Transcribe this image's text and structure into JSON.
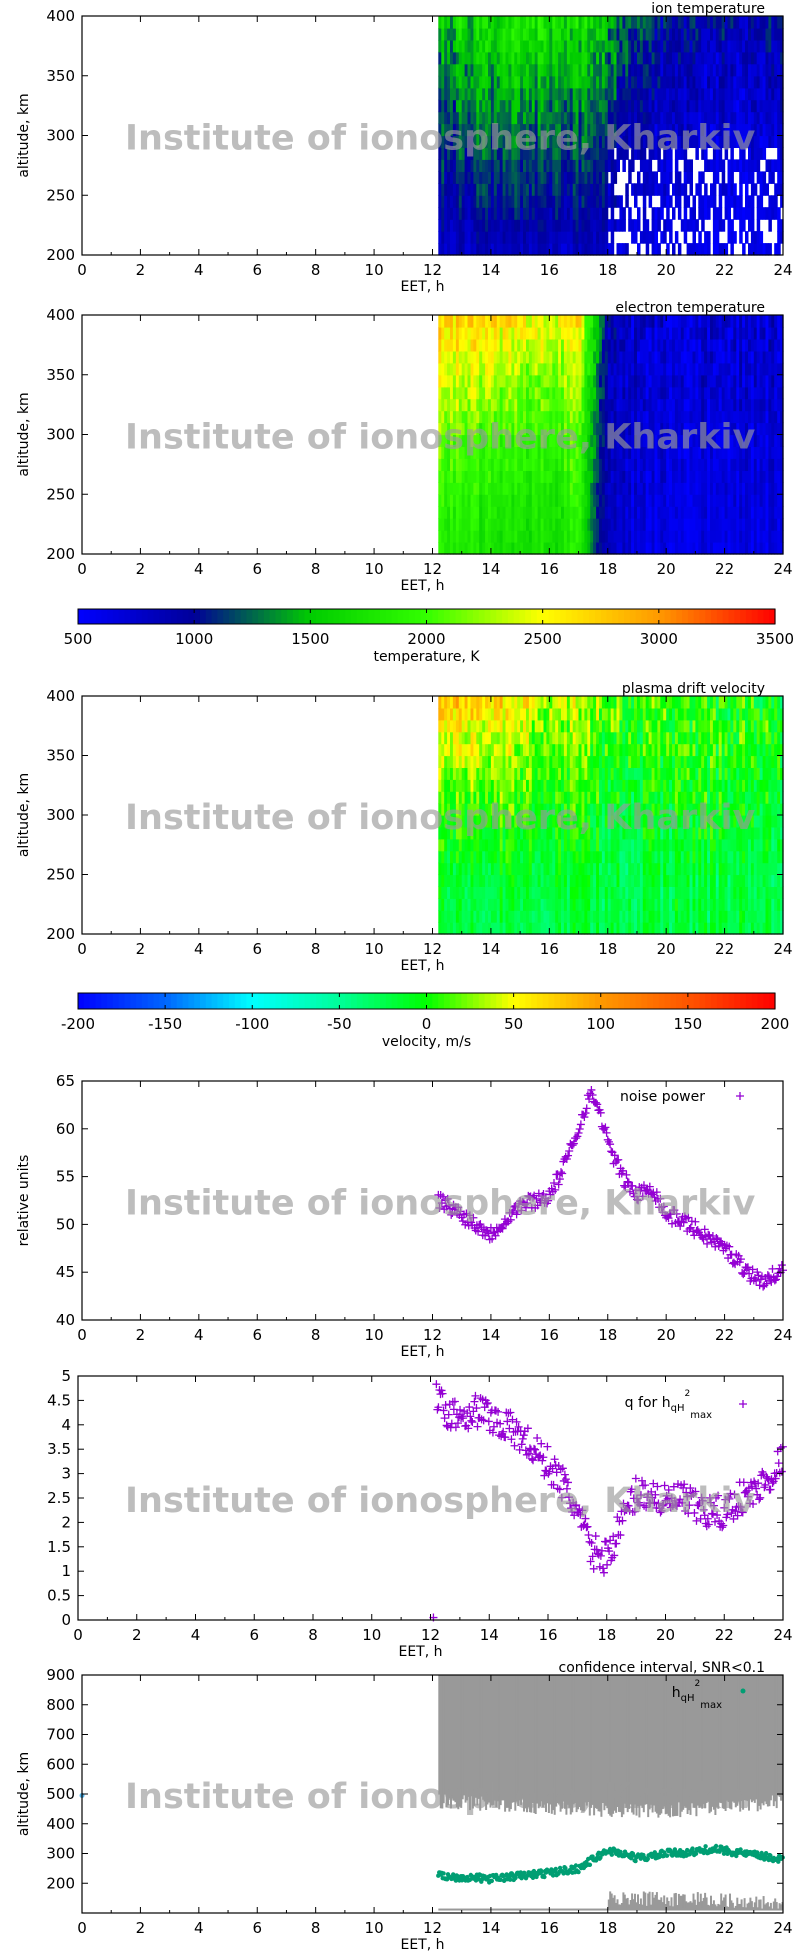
{
  "watermark": "Institute of ionosphere, Kharkiv",
  "chart_data": [
    {
      "type": "heatmap",
      "title": "ion temperature",
      "xlabel": "EET, h",
      "ylabel": "altitude, km",
      "xlim": [
        0,
        24
      ],
      "ylim": [
        200,
        400
      ],
      "xticks": [
        0,
        2,
        4,
        6,
        8,
        10,
        12,
        14,
        16,
        18,
        20,
        22,
        24
      ],
      "yticks": [
        200,
        250,
        300,
        350,
        400
      ],
      "data_start_h": 12.2,
      "colorscale": "temperature",
      "grid_hours": [
        12,
        13,
        14,
        15,
        16,
        17,
        18,
        19,
        20,
        21,
        22,
        23,
        24
      ],
      "grid_altitudes": [
        200,
        250,
        300,
        350,
        400
      ],
      "values_K": [
        [
          800,
          1000,
          1150,
          1300,
          1500
        ],
        [
          800,
          1000,
          1200,
          1400,
          1600
        ],
        [
          800,
          1050,
          1250,
          1450,
          1700
        ],
        [
          800,
          1050,
          1250,
          1500,
          1750
        ],
        [
          800,
          1050,
          1250,
          1500,
          1800
        ],
        [
          800,
          1000,
          1200,
          1450,
          1700
        ],
        [
          750,
          900,
          1050,
          1250,
          1450
        ],
        [
          650,
          750,
          850,
          1000,
          1200
        ],
        [
          600,
          650,
          750,
          850,
          1000
        ],
        [
          600,
          650,
          700,
          800,
          950
        ],
        [
          600,
          650,
          700,
          800,
          950
        ],
        [
          600,
          650,
          700,
          800,
          950
        ],
        [
          600,
          650,
          750,
          850,
          1000
        ]
      ]
    },
    {
      "type": "heatmap",
      "title": "electron temperature",
      "xlabel": "EET, h",
      "ylabel": "altitude, km",
      "xlim": [
        0,
        24
      ],
      "ylim": [
        200,
        400
      ],
      "xticks": [
        0,
        2,
        4,
        6,
        8,
        10,
        12,
        14,
        16,
        18,
        20,
        22,
        24
      ],
      "yticks": [
        200,
        250,
        300,
        350,
        400
      ],
      "data_start_h": 12.2,
      "colorscale": "temperature",
      "grid_hours": [
        12,
        13,
        14,
        15,
        16,
        17,
        18,
        19,
        20,
        21,
        22,
        23,
        24
      ],
      "grid_altitudes": [
        200,
        250,
        300,
        350,
        400
      ],
      "values_K": [
        [
          1900,
          2000,
          2200,
          2500,
          2800
        ],
        [
          1800,
          1900,
          2100,
          2400,
          2700
        ],
        [
          1700,
          1800,
          2000,
          2300,
          2700
        ],
        [
          1700,
          1800,
          2000,
          2200,
          2600
        ],
        [
          1700,
          1800,
          2000,
          2200,
          2500
        ],
        [
          1800,
          1900,
          2000,
          2300,
          2600
        ],
        [
          800,
          800,
          850,
          850,
          900
        ],
        [
          650,
          650,
          700,
          700,
          700
        ],
        [
          600,
          650,
          650,
          700,
          700
        ],
        [
          600,
          650,
          650,
          700,
          700
        ],
        [
          600,
          650,
          650,
          700,
          700
        ],
        [
          600,
          650,
          650,
          700,
          700
        ],
        [
          600,
          650,
          650,
          700,
          700
        ]
      ]
    },
    {
      "type": "colorbar",
      "name": "temperature",
      "label": "temperature, K",
      "range": [
        500,
        3500
      ],
      "ticks": [
        500,
        1000,
        1500,
        2000,
        2500,
        3000,
        3500
      ],
      "colors": [
        "#0000ff",
        "#000099",
        "#00cc00",
        "#33ff00",
        "#ffff00",
        "#ff9900",
        "#ff0000"
      ]
    },
    {
      "type": "heatmap",
      "title": "plasma drift velocity",
      "xlabel": "EET, h",
      "ylabel": "altitude, km",
      "xlim": [
        0,
        24
      ],
      "ylim": [
        200,
        400
      ],
      "xticks": [
        0,
        2,
        4,
        6,
        8,
        10,
        12,
        14,
        16,
        18,
        20,
        22,
        24
      ],
      "yticks": [
        200,
        250,
        300,
        350,
        400
      ],
      "data_start_h": 12.2,
      "colorscale": "velocity",
      "grid_hours": [
        12,
        13,
        14,
        15,
        16,
        17,
        18,
        19,
        20,
        21,
        22,
        23,
        24
      ],
      "grid_altitudes": [
        200,
        250,
        300,
        350,
        400
      ],
      "values_ms": [
        [
          -20,
          -10,
          10,
          40,
          60
        ],
        [
          -20,
          -10,
          10,
          40,
          80
        ],
        [
          -20,
          -10,
          10,
          40,
          70
        ],
        [
          -20,
          -10,
          10,
          30,
          60
        ],
        [
          -20,
          -10,
          0,
          20,
          40
        ],
        [
          -20,
          -10,
          0,
          20,
          40
        ],
        [
          -20,
          -20,
          -10,
          0,
          20
        ],
        [
          -20,
          -20,
          -10,
          0,
          10
        ],
        [
          -20,
          -20,
          -10,
          0,
          10
        ],
        [
          -20,
          -20,
          -10,
          0,
          0
        ],
        [
          -20,
          -20,
          -10,
          0,
          0
        ],
        [
          -20,
          -20,
          -10,
          0,
          0
        ],
        [
          -20,
          -20,
          -10,
          0,
          0
        ]
      ]
    },
    {
      "type": "colorbar",
      "name": "velocity",
      "label": "velocity, m/s",
      "range": [
        -200,
        200
      ],
      "ticks": [
        -200,
        -150,
        -100,
        -50,
        0,
        50,
        100,
        150,
        200
      ],
      "colors": [
        "#0000ff",
        "#0066ff",
        "#00ffff",
        "#00ff99",
        "#00ff00",
        "#ffff00",
        "#ff9900",
        "#ff5500",
        "#ff0000"
      ]
    },
    {
      "type": "scatter",
      "legend": "noise power",
      "xlabel": "EET, h",
      "ylabel": "relative units",
      "xlim": [
        0,
        24
      ],
      "ylim": [
        40,
        65
      ],
      "xticks": [
        0,
        2,
        4,
        6,
        8,
        10,
        12,
        14,
        16,
        18,
        20,
        22,
        24
      ],
      "yticks": [
        40,
        45,
        50,
        55,
        60,
        65
      ],
      "color": "#9400d3",
      "x": [
        12.2,
        12.5,
        13,
        13.5,
        14,
        14.5,
        15,
        15.5,
        16,
        16.5,
        17,
        17.3,
        17.5,
        17.8,
        18,
        18.5,
        19,
        19.5,
        20,
        20.5,
        21,
        21.5,
        22,
        22.5,
        23,
        23.5,
        24
      ],
      "y": [
        52.5,
        52,
        51,
        50,
        49,
        50.5,
        52,
        52.5,
        53,
        56,
        60,
        63,
        63.5,
        61,
        58.5,
        55,
        53,
        54,
        51,
        50.5,
        49.5,
        48.5,
        47.5,
        46,
        44.5,
        44,
        46
      ]
    },
    {
      "type": "scatter",
      "legend_main": "q for h",
      "legend_sub": "qH",
      "legend_sup": "2",
      "legend_sub2": "max",
      "xlabel": "EET, h",
      "ylabel": "",
      "xlim": [
        0,
        24
      ],
      "ylim": [
        0,
        5
      ],
      "xticks": [
        0,
        2,
        4,
        6,
        8,
        10,
        12,
        14,
        16,
        18,
        20,
        22,
        24
      ],
      "yticks": [
        0,
        0.5,
        1,
        1.5,
        2,
        2.5,
        3,
        3.5,
        4,
        4.5,
        5
      ],
      "color": "#9400d3",
      "x": [
        12.2,
        12.5,
        13,
        13.5,
        14,
        14.5,
        15,
        15.5,
        16,
        16.5,
        17,
        17.5,
        18,
        18.5,
        19,
        19.5,
        20,
        20.5,
        21,
        21.5,
        22,
        22.5,
        23,
        23.5,
        24
      ],
      "y": [
        4.5,
        4.3,
        4.2,
        4.3,
        4.2,
        4.0,
        3.8,
        3.5,
        3.2,
        2.8,
        2.2,
        1.4,
        1.3,
        2.0,
        2.6,
        2.6,
        2.4,
        2.5,
        2.3,
        2.2,
        2.2,
        2.5,
        2.6,
        2.9,
        3.3
      ]
    },
    {
      "type": "area+scatter",
      "title": "confidence interval, SNR<0.1",
      "legend_main": "h",
      "legend_sub": "qH",
      "legend_sup": "2",
      "legend_sub2": "max",
      "xlabel": "EET, h",
      "ylabel": "altitude, km",
      "xlim": [
        0,
        24
      ],
      "ylim": [
        100,
        900
      ],
      "xticks": [
        0,
        2,
        4,
        6,
        8,
        10,
        12,
        14,
        16,
        18,
        20,
        22,
        24
      ],
      "yticks": [
        200,
        300,
        400,
        500,
        600,
        700,
        800,
        900
      ],
      "band_color": "#999999",
      "point_color": "#009e73",
      "upper_band_x": [
        12.2,
        14,
        16,
        18,
        20,
        22,
        24
      ],
      "upper_band_bottom": [
        500,
        490,
        480,
        470,
        470,
        480,
        500
      ],
      "lower_band_x": [
        18,
        19,
        20,
        21,
        22,
        23,
        24
      ],
      "lower_band_top": [
        180,
        175,
        170,
        175,
        170,
        160,
        150
      ],
      "x": [
        12.2,
        13,
        14,
        15,
        16,
        17,
        17.5,
        18,
        18.5,
        19,
        19.5,
        20,
        21,
        21.5,
        22,
        23,
        24
      ],
      "y": [
        225,
        220,
        215,
        225,
        235,
        250,
        280,
        310,
        300,
        285,
        290,
        300,
        305,
        315,
        310,
        295,
        280
      ]
    }
  ]
}
